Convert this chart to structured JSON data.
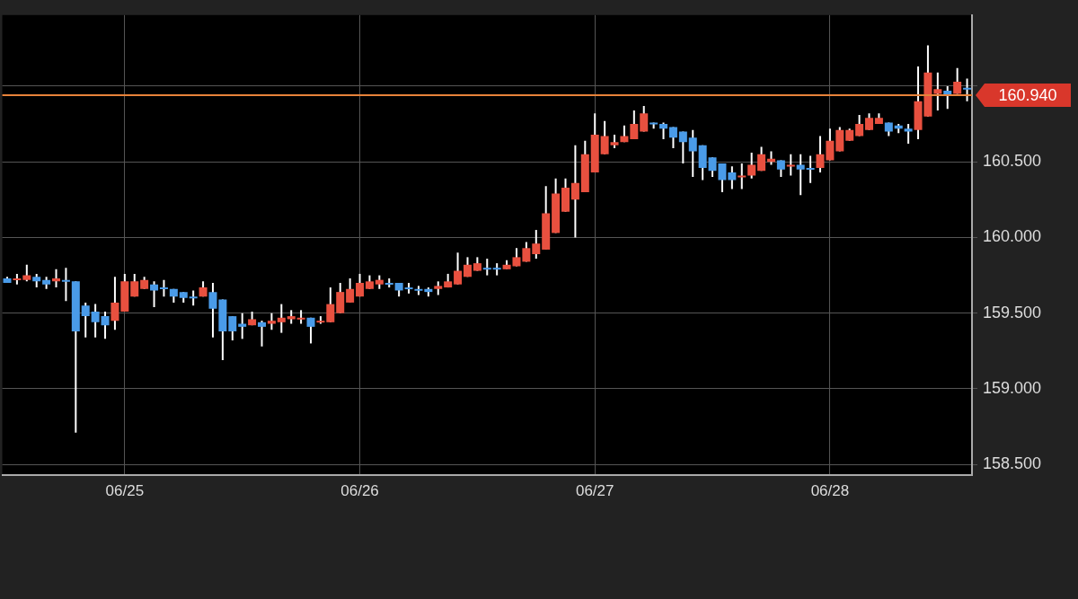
{
  "chart_data": {
    "type": "candlestick",
    "categories": [
      null,
      null,
      null,
      null,
      null,
      null,
      null,
      null,
      null,
      null,
      null,
      null,
      "06/25",
      null,
      null,
      null,
      null,
      null,
      null,
      null,
      null,
      null,
      null,
      null,
      null,
      null,
      null,
      null,
      null,
      null,
      null,
      null,
      null,
      null,
      null,
      null,
      "06/26",
      null,
      null,
      null,
      null,
      null,
      null,
      null,
      null,
      null,
      null,
      null,
      null,
      null,
      null,
      null,
      null,
      null,
      null,
      null,
      null,
      null,
      null,
      null,
      "06/27",
      null,
      null,
      null,
      null,
      null,
      null,
      null,
      null,
      null,
      null,
      null,
      null,
      null,
      null,
      null,
      null,
      null,
      null,
      null,
      null,
      null,
      null,
      null,
      "06/28",
      null,
      null,
      null,
      null,
      null,
      null,
      null,
      null,
      null,
      null,
      null,
      null,
      null,
      null
    ],
    "ohlc": [
      [
        159.73,
        159.74,
        159.7,
        159.7
      ],
      [
        159.72,
        159.76,
        159.69,
        159.73
      ],
      [
        159.72,
        159.82,
        159.71,
        159.75
      ],
      [
        159.74,
        159.76,
        159.67,
        159.71
      ],
      [
        159.72,
        159.74,
        159.66,
        159.69
      ],
      [
        159.71,
        159.79,
        159.67,
        159.73
      ],
      [
        159.72,
        159.8,
        159.58,
        159.71
      ],
      [
        159.71,
        159.71,
        158.71,
        159.38
      ],
      [
        159.55,
        159.57,
        159.34,
        159.48
      ],
      [
        159.51,
        159.56,
        159.34,
        159.44
      ],
      [
        159.48,
        159.51,
        159.33,
        159.42
      ],
      [
        159.45,
        159.74,
        159.39,
        159.57
      ],
      [
        159.51,
        159.76,
        159.51,
        159.71
      ],
      [
        159.61,
        159.76,
        159.61,
        159.71
      ],
      [
        159.66,
        159.74,
        159.66,
        159.72
      ],
      [
        159.69,
        159.71,
        159.54,
        159.65
      ],
      [
        159.67,
        159.72,
        159.61,
        159.66
      ],
      [
        159.66,
        159.66,
        159.57,
        159.61
      ],
      [
        159.64,
        159.64,
        159.57,
        159.6
      ],
      [
        159.61,
        159.65,
        159.55,
        159.61
      ],
      [
        159.61,
        159.71,
        159.61,
        159.67
      ],
      [
        159.64,
        159.7,
        159.34,
        159.53
      ],
      [
        159.59,
        159.59,
        159.19,
        159.38
      ],
      [
        159.48,
        159.48,
        159.32,
        159.38
      ],
      [
        159.43,
        159.5,
        159.33,
        159.41
      ],
      [
        159.42,
        159.51,
        159.42,
        159.46
      ],
      [
        159.44,
        159.45,
        159.28,
        159.41
      ],
      [
        159.43,
        159.5,
        159.39,
        159.45
      ],
      [
        159.44,
        159.56,
        159.37,
        159.47
      ],
      [
        159.46,
        159.52,
        159.43,
        159.48
      ],
      [
        159.46,
        159.52,
        159.43,
        159.47
      ],
      [
        159.47,
        159.47,
        159.3,
        159.41
      ],
      [
        159.44,
        159.48,
        159.43,
        159.45
      ],
      [
        159.44,
        159.67,
        159.44,
        159.56
      ],
      [
        159.5,
        159.7,
        159.5,
        159.64
      ],
      [
        159.57,
        159.73,
        159.57,
        159.66
      ],
      [
        159.61,
        159.76,
        159.61,
        159.7
      ],
      [
        159.66,
        159.75,
        159.66,
        159.71
      ],
      [
        159.69,
        159.75,
        159.66,
        159.72
      ],
      [
        159.7,
        159.73,
        159.67,
        159.7
      ],
      [
        159.7,
        159.7,
        159.61,
        159.65
      ],
      [
        159.67,
        159.7,
        159.63,
        159.66
      ],
      [
        159.66,
        159.68,
        159.62,
        159.65
      ],
      [
        159.66,
        159.67,
        159.61,
        159.64
      ],
      [
        159.66,
        159.71,
        159.62,
        159.68
      ],
      [
        159.67,
        159.76,
        159.67,
        159.71
      ],
      [
        159.69,
        159.9,
        159.69,
        159.78
      ],
      [
        159.74,
        159.87,
        159.74,
        159.82
      ],
      [
        159.78,
        159.87,
        159.78,
        159.83
      ],
      [
        159.8,
        159.86,
        159.75,
        159.79
      ],
      [
        159.8,
        159.83,
        159.75,
        159.79
      ],
      [
        159.79,
        159.85,
        159.79,
        159.82
      ],
      [
        159.81,
        159.93,
        159.81,
        159.87
      ],
      [
        159.84,
        159.97,
        159.84,
        159.93
      ],
      [
        159.89,
        160.05,
        159.86,
        159.96
      ],
      [
        159.92,
        160.34,
        159.92,
        160.16
      ],
      [
        160.03,
        160.39,
        160.03,
        160.29
      ],
      [
        160.17,
        160.39,
        160.17,
        160.33
      ],
      [
        160.25,
        160.61,
        160.0,
        160.36
      ],
      [
        160.3,
        160.64,
        160.3,
        160.55
      ],
      [
        160.43,
        160.82,
        160.43,
        160.68
      ],
      [
        160.55,
        160.77,
        160.55,
        160.67
      ],
      [
        160.61,
        160.68,
        160.59,
        160.63
      ],
      [
        160.63,
        160.74,
        160.63,
        160.67
      ],
      [
        160.65,
        160.84,
        160.65,
        160.75
      ],
      [
        160.7,
        160.87,
        160.7,
        160.82
      ],
      [
        160.76,
        160.76,
        160.72,
        160.75
      ],
      [
        160.75,
        160.76,
        160.65,
        160.72
      ],
      [
        160.73,
        160.73,
        160.59,
        160.66
      ],
      [
        160.7,
        160.7,
        160.49,
        160.63
      ],
      [
        160.66,
        160.71,
        160.4,
        160.57
      ],
      [
        160.61,
        160.61,
        160.38,
        160.46
      ],
      [
        160.53,
        160.53,
        160.4,
        160.44
      ],
      [
        160.49,
        160.49,
        160.3,
        160.38
      ],
      [
        160.43,
        160.47,
        160.32,
        160.38
      ],
      [
        160.4,
        160.49,
        160.32,
        160.41
      ],
      [
        160.41,
        160.56,
        160.39,
        160.48
      ],
      [
        160.44,
        160.6,
        160.44,
        160.55
      ],
      [
        160.5,
        160.57,
        160.48,
        160.52
      ],
      [
        160.51,
        160.51,
        160.4,
        160.45
      ],
      [
        160.48,
        160.55,
        160.41,
        160.48
      ],
      [
        160.48,
        160.55,
        160.28,
        160.45
      ],
      [
        160.46,
        160.54,
        160.36,
        160.45
      ],
      [
        160.46,
        160.67,
        160.43,
        160.55
      ],
      [
        160.51,
        160.72,
        160.51,
        160.64
      ],
      [
        160.57,
        160.73,
        160.57,
        160.71
      ],
      [
        160.64,
        160.72,
        160.64,
        160.71
      ],
      [
        160.67,
        160.81,
        160.67,
        160.75
      ],
      [
        160.71,
        160.82,
        160.71,
        160.79
      ],
      [
        160.75,
        160.82,
        160.75,
        160.79
      ],
      [
        160.76,
        160.76,
        160.67,
        160.7
      ],
      [
        160.74,
        160.75,
        160.69,
        160.72
      ],
      [
        160.72,
        160.75,
        160.62,
        160.7
      ],
      [
        160.71,
        161.13,
        160.65,
        160.9
      ],
      [
        160.8,
        161.27,
        160.8,
        161.09
      ],
      [
        160.95,
        161.09,
        160.84,
        160.98
      ],
      [
        160.97,
        161.0,
        160.85,
        160.94
      ],
      [
        160.95,
        161.12,
        160.95,
        161.03
      ],
      [
        160.99,
        161.05,
        160.9,
        160.98
      ]
    ],
    "colors": [
      "#4a9be8",
      "#e8503f",
      "#e8503f",
      "#4a9be8",
      "#4a9be8",
      "#e8503f",
      "#4a9be8",
      "#4a9be8",
      "#4a9be8",
      "#4a9be8",
      "#4a9be8",
      "#e8503f",
      "#e8503f",
      "#e8503f",
      "#e8503f",
      "#4a9be8",
      "#4a9be8",
      "#4a9be8",
      "#4a9be8",
      "#4a9be8",
      "#e8503f",
      "#4a9be8",
      "#4a9be8",
      "#4a9be8",
      "#4a9be8",
      "#e8503f",
      "#4a9be8",
      "#e8503f",
      "#e8503f",
      "#e8503f",
      "#e8503f",
      "#4a9be8",
      "#e8503f",
      "#e8503f",
      "#e8503f",
      "#e8503f",
      "#e8503f",
      "#e8503f",
      "#e8503f",
      "#4a9be8",
      "#4a9be8",
      "#4a9be8",
      "#4a9be8",
      "#4a9be8",
      "#e8503f",
      "#e8503f",
      "#e8503f",
      "#e8503f",
      "#e8503f",
      "#4a9be8",
      "#4a9be8",
      "#e8503f",
      "#e8503f",
      "#e8503f",
      "#e8503f",
      "#e8503f",
      "#e8503f",
      "#e8503f",
      "#e8503f",
      "#e8503f",
      "#e8503f",
      "#e8503f",
      "#e8503f",
      "#e8503f",
      "#e8503f",
      "#e8503f",
      "#4a9be8",
      "#4a9be8",
      "#4a9be8",
      "#4a9be8",
      "#4a9be8",
      "#4a9be8",
      "#4a9be8",
      "#4a9be8",
      "#4a9be8",
      "#e8503f",
      "#e8503f",
      "#e8503f",
      "#e8503f",
      "#4a9be8",
      "#e8503f",
      "#4a9be8",
      "#4a9be8",
      "#e8503f",
      "#e8503f",
      "#e8503f",
      "#e8503f",
      "#e8503f",
      "#e8503f",
      "#e8503f",
      "#4a9be8",
      "#4a9be8",
      "#4a9be8",
      "#e8503f",
      "#e8503f",
      "#e8503f",
      "#4a9be8",
      "#e8503f",
      "#4a9be8"
    ],
    "ylim": [
      158.43,
      161.47
    ],
    "yticks": [
      {
        "value": 158.5,
        "label": "158.500"
      },
      {
        "value": 159,
        "label": "159.000"
      },
      {
        "value": 159.5,
        "label": "159.500"
      },
      {
        "value": 160,
        "label": "160.000"
      },
      {
        "value": 160.5,
        "label": "160.500"
      },
      {
        "value": 161,
        "label": null
      }
    ],
    "grid": true,
    "ref_lines": [
      {
        "axis": "y",
        "value": 160.94,
        "label": "160.940",
        "color": "#e8833a"
      }
    ]
  }
}
